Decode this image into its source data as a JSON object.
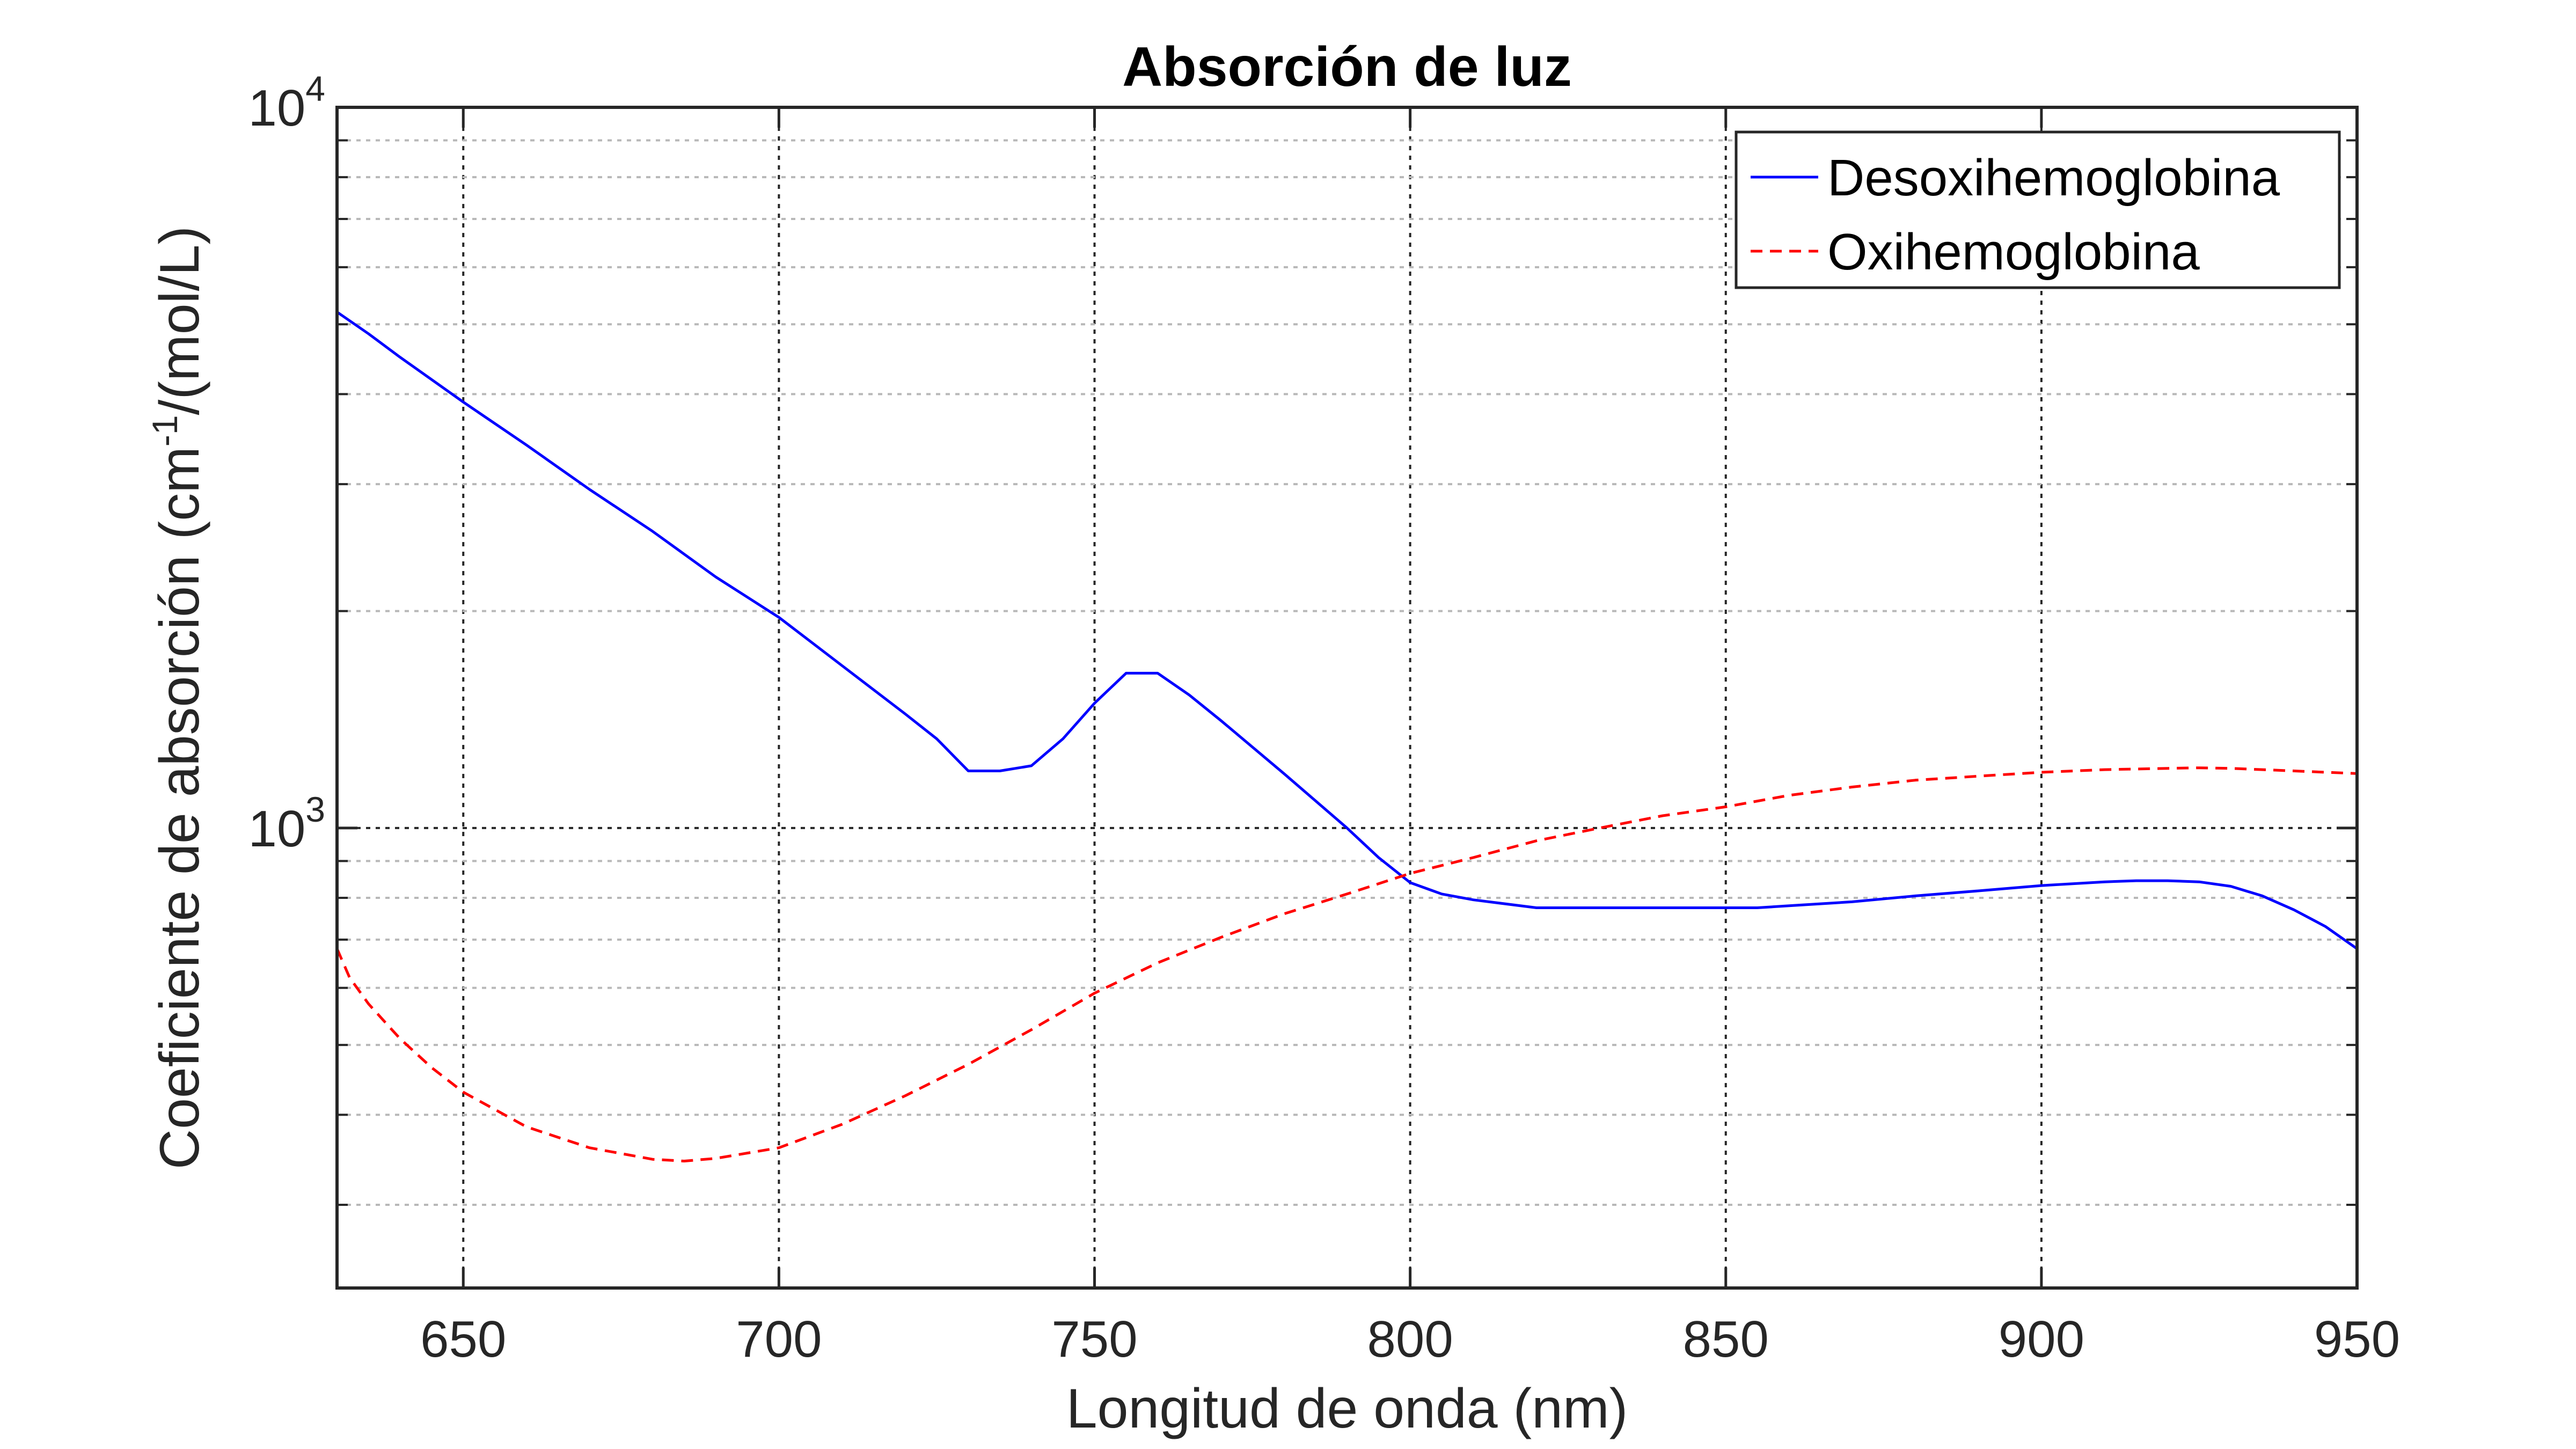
{
  "chart_data": {
    "type": "line",
    "title": "Absorción de luz",
    "xlabel": "Longitud de onda (nm)",
    "ylabel": {
      "prefix": "Coeficiente de absorción (cm",
      "sup": "-1",
      "suffix": "/(mol/L)"
    },
    "xlim": [
      630,
      950
    ],
    "ylim": [
      230,
      10000
    ],
    "yscale": "log",
    "grid": true,
    "legend_position": "top-right",
    "x_ticks": [
      {
        "value": 650,
        "label": "650"
      },
      {
        "value": 700,
        "label": "700"
      },
      {
        "value": 750,
        "label": "750"
      },
      {
        "value": 800,
        "label": "800"
      },
      {
        "value": 850,
        "label": "850"
      },
      {
        "value": 900,
        "label": "900"
      },
      {
        "value": 950,
        "label": "950"
      }
    ],
    "y_ticks": [
      {
        "value": 1000,
        "base": "10",
        "exp": "3"
      },
      {
        "value": 10000,
        "base": "10",
        "exp": "4"
      }
    ],
    "series": [
      {
        "name": "Desoxihemoglobina",
        "color": "#0000ff",
        "dash": "solid",
        "x": [
          630,
          635,
          640,
          650,
          660,
          670,
          680,
          690,
          700,
          710,
          720,
          725,
          730,
          735,
          740,
          745,
          750,
          755,
          760,
          765,
          770,
          780,
          790,
          795,
          800,
          805,
          810,
          820,
          830,
          840,
          850,
          855,
          860,
          870,
          880,
          890,
          900,
          910,
          915,
          920,
          925,
          930,
          935,
          940,
          945,
          950
        ],
        "y": [
          5200,
          4850,
          4500,
          3900,
          3400,
          2950,
          2580,
          2230,
          1960,
          1680,
          1440,
          1330,
          1200,
          1200,
          1220,
          1330,
          1490,
          1640,
          1640,
          1530,
          1410,
          1190,
          1000,
          910,
          840,
          810,
          795,
          775,
          775,
          775,
          775,
          775,
          780,
          790,
          805,
          818,
          832,
          842,
          845,
          845,
          842,
          830,
          805,
          770,
          730,
          680
        ]
      },
      {
        "name": "Oxihemoglobina",
        "color": "#ff0000",
        "dash": "dashed",
        "x": [
          630,
          632,
          635,
          640,
          645,
          650,
          660,
          670,
          680,
          685,
          690,
          700,
          710,
          720,
          730,
          740,
          750,
          760,
          770,
          780,
          790,
          800,
          810,
          820,
          830,
          840,
          850,
          860,
          870,
          880,
          890,
          900,
          910,
          920,
          925,
          930,
          940,
          950
        ],
        "y": [
          680,
          620,
          570,
          510,
          465,
          430,
          385,
          360,
          347,
          345,
          348,
          360,
          388,
          425,
          470,
          525,
          590,
          650,
          705,
          760,
          810,
          865,
          910,
          960,
          1000,
          1040,
          1070,
          1110,
          1140,
          1165,
          1180,
          1195,
          1205,
          1210,
          1212,
          1210,
          1200,
          1190
        ]
      }
    ]
  }
}
